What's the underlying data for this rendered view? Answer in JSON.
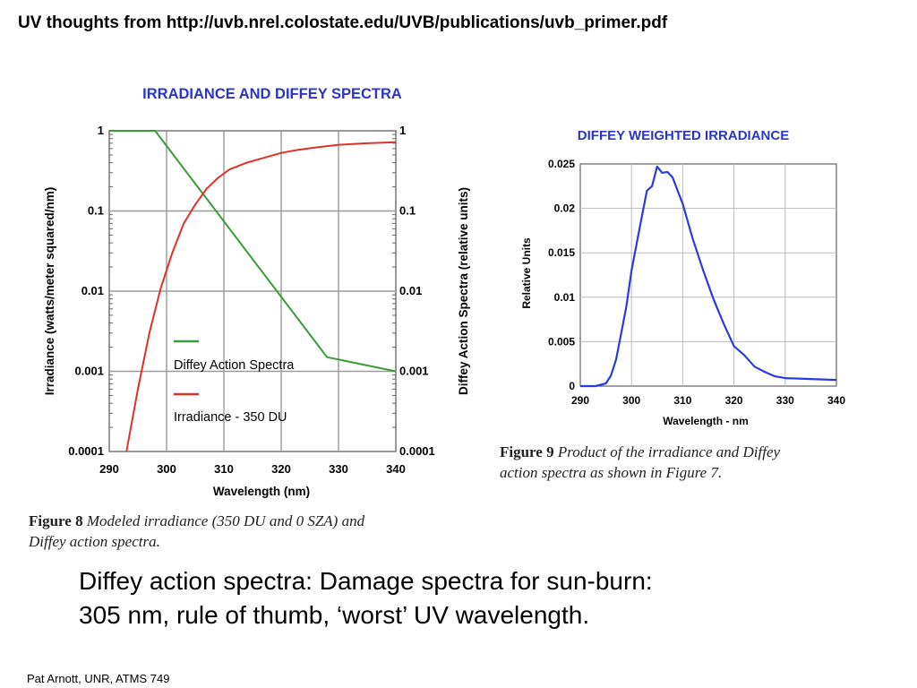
{
  "slide": {
    "title": "UV thoughts from http://uvb.nrel.colostate.edu/UVB/publications/uvb_primer.pdf",
    "body_lines": [
      "Diffey action spectra:  Damage spectra for sun-burn:",
      "305 nm, rule of thumb, ‘worst’ UV wavelength."
    ],
    "footer": "Pat Arnott, UNR, ATMS 749"
  },
  "captions": {
    "fig8": {
      "label": "Figure 8",
      "line1": " Modeled irradiance (350 DU and 0 SZA) and",
      "line2": "Diffey action spectra."
    },
    "fig9": {
      "label": "Figure 9",
      "line1": " Product of the irradiance and Diffey",
      "line2": "action spectra as shown in Figure 7."
    }
  },
  "chart_data": [
    {
      "type": "line",
      "title": "IRRADIANCE AND DIFFEY SPECTRA",
      "xlabel": "Wavelength (nm)",
      "ylabel": "Irradiance (watts/meter squared/nm)",
      "ylabel_right": "Diffey Action Spectra (relative units)",
      "xlim": [
        290,
        340
      ],
      "ylim": [
        0.0001,
        1
      ],
      "yscale": "log",
      "x_ticks": [
        290,
        300,
        310,
        320,
        330,
        340
      ],
      "x_tick_labels": [
        "290",
        "300",
        "310",
        "320",
        "330",
        "340"
      ],
      "y_ticks": [
        0.0001,
        0.001,
        0.01,
        0.1,
        1
      ],
      "y_tick_labels": [
        "0.0001",
        "0.001",
        "0.01",
        "0.1",
        "1"
      ],
      "grid": true,
      "legend_position": "center",
      "title_color": "#2a35c9",
      "series": [
        {
          "name": "Diffey Action Spectra",
          "color": "#3b9b3b",
          "x": [
            290,
            298,
            328,
            340
          ],
          "y": [
            1,
            1,
            0.0015,
            0.001
          ]
        },
        {
          "name": "Irradiance - 350 DU",
          "color": "#e0302a",
          "x": [
            293,
            295,
            297,
            299,
            301,
            303,
            305,
            307,
            309,
            311,
            314,
            317,
            320,
            323,
            326,
            330,
            335,
            340
          ],
          "y": [
            0.0001,
            0.0006,
            0.003,
            0.011,
            0.03,
            0.07,
            0.12,
            0.19,
            0.26,
            0.33,
            0.4,
            0.46,
            0.53,
            0.58,
            0.62,
            0.67,
            0.7,
            0.72
          ]
        }
      ]
    },
    {
      "type": "line",
      "title": "DIFFEY WEIGHTED IRRADIANCE",
      "xlabel": "Wavelength - nm",
      "ylabel": "Relative Units",
      "xlim": [
        290,
        340
      ],
      "ylim": [
        0,
        0.025
      ],
      "x_ticks": [
        290,
        300,
        310,
        320,
        330,
        340
      ],
      "x_tick_labels": [
        "290",
        "300",
        "310",
        "320",
        "330",
        "340"
      ],
      "y_ticks": [
        0,
        0.005,
        0.01,
        0.015,
        0.02,
        0.025
      ],
      "y_tick_labels": [
        "0",
        "0.005",
        "0.01",
        "0.015",
        "0.02",
        "0.025"
      ],
      "grid": true,
      "title_color": "#2a35c9",
      "series": [
        {
          "color": "#2a3be0",
          "x": [
            290,
            293,
            295,
            296,
            297,
            298,
            299,
            300,
            301,
            302,
            303,
            304,
            305,
            306,
            307,
            308,
            309,
            310,
            311,
            312,
            314,
            316,
            318,
            320,
            322,
            324,
            326,
            328,
            330,
            335,
            340
          ],
          "y": [
            0,
            0,
            0.0003,
            0.0012,
            0.003,
            0.006,
            0.009,
            0.013,
            0.016,
            0.019,
            0.022,
            0.0225,
            0.0247,
            0.024,
            0.0241,
            0.0235,
            0.022,
            0.0205,
            0.0185,
            0.0165,
            0.013,
            0.0098,
            0.007,
            0.0045,
            0.0035,
            0.0022,
            0.0016,
            0.0011,
            0.0009,
            0.0008,
            0.0007
          ]
        }
      ]
    }
  ]
}
